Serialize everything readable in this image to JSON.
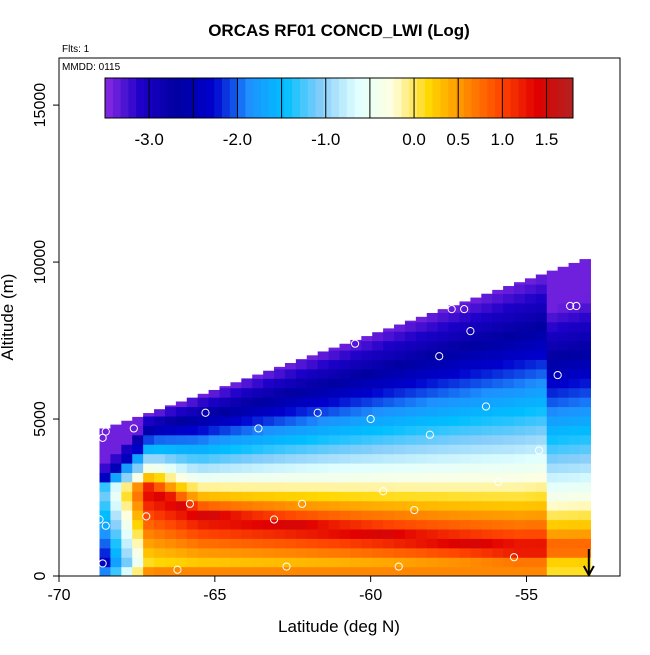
{
  "chart_data": {
    "type": "heatmap",
    "title": "ORCAS RF01 CONCD_LWI (Log)",
    "annotations": {
      "flights": "Flts: 1",
      "date": "MMDD: 0115"
    },
    "xlabel": "Latitude (deg N)",
    "ylabel": "Altitude (m)",
    "xlim": [
      -70,
      -52
    ],
    "ylim": [
      0,
      16500
    ],
    "x_ticks": [
      -70,
      -65,
      -60,
      -55
    ],
    "x_tick_labels": [
      "-70",
      "-65",
      "-60",
      "-55"
    ],
    "y_ticks": [
      0,
      5000,
      10000,
      15000
    ],
    "y_tick_labels": [
      "0",
      "5000",
      "10000",
      "15000"
    ],
    "colorbar": {
      "range": [
        -3.5,
        1.8
      ],
      "ticks": [
        -3.0,
        -2.0,
        -1.0,
        0.0,
        0.5,
        1.0,
        1.5
      ],
      "tick_labels": [
        "-3.0",
        "-2.0",
        "-1.0",
        "0.0",
        "0.5",
        "1.0",
        "1.5"
      ],
      "colors": [
        "#8a2be2",
        "#1c00c8",
        "#0000a0",
        "#0000cd",
        "#1e90ff",
        "#00bfff",
        "#87cefa",
        "#e0ffff",
        "#ffffe0",
        "#ffd700",
        "#ff8c00",
        "#ff4500",
        "#e00000",
        "#b22222"
      ]
    },
    "field": {
      "lat_range": [
        -68.7,
        -53.0
      ],
      "alt_range": [
        0,
        10200
      ],
      "top_boundary": [
        [
          -68.7,
          4700
        ],
        [
          -53.0,
          10200
        ]
      ],
      "max_band": [
        [
          -67.0,
          2800
        ],
        [
          -65.5,
          2000
        ],
        [
          -60.0,
          1400
        ],
        [
          -55.3,
          900
        ]
      ],
      "max_value": 1.5,
      "min_value": -3.4
    },
    "flight_points": [
      {
        "lat": -68.5,
        "alt": 4600
      },
      {
        "lat": -68.6,
        "alt": 4400
      },
      {
        "lat": -67.6,
        "alt": 4700
      },
      {
        "lat": -65.3,
        "alt": 5200
      },
      {
        "lat": -63.6,
        "alt": 4700
      },
      {
        "lat": -61.7,
        "alt": 5200
      },
      {
        "lat": -60.0,
        "alt": 5000
      },
      {
        "lat": -58.1,
        "alt": 4500
      },
      {
        "lat": -56.3,
        "alt": 5400
      },
      {
        "lat": -54.6,
        "alt": 4000
      },
      {
        "lat": -54.0,
        "alt": 6400
      },
      {
        "lat": -57.8,
        "alt": 7000
      },
      {
        "lat": -56.8,
        "alt": 7800
      },
      {
        "lat": -60.5,
        "alt": 7400
      },
      {
        "lat": -57.4,
        "alt": 8500
      },
      {
        "lat": -57.0,
        "alt": 8500
      },
      {
        "lat": -53.6,
        "alt": 8600
      },
      {
        "lat": -53.4,
        "alt": 8600
      },
      {
        "lat": -68.7,
        "alt": 1800
      },
      {
        "lat": -68.5,
        "alt": 1600
      },
      {
        "lat": -67.2,
        "alt": 1900
      },
      {
        "lat": -65.8,
        "alt": 2300
      },
      {
        "lat": -63.1,
        "alt": 1800
      },
      {
        "lat": -62.2,
        "alt": 2300
      },
      {
        "lat": -59.6,
        "alt": 2700
      },
      {
        "lat": -58.6,
        "alt": 2100
      },
      {
        "lat": -55.9,
        "alt": 3000
      },
      {
        "lat": -55.4,
        "alt": 600
      },
      {
        "lat": -68.6,
        "alt": 400
      },
      {
        "lat": -66.2,
        "alt": 200
      },
      {
        "lat": -62.7,
        "alt": 300
      },
      {
        "lat": -59.1,
        "alt": 300
      }
    ],
    "arrow": {
      "lat": -53.0,
      "alt_from": 700,
      "alt_to": 0
    },
    "grid": false,
    "legend": "colorbar top"
  }
}
